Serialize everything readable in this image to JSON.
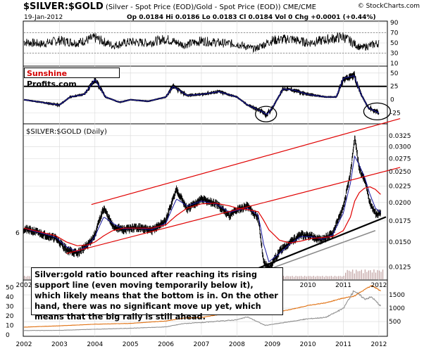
{
  "header": {
    "ticker": "$SILVER:$GOLD",
    "description": "(Silver - Spot Price (EOD)/Gold - Spot Price (EOD)) CME/CME",
    "watermark": "© StockCharts.com",
    "date": "19-Jan-2012",
    "stats": "Op 0.0184  Hi 0.0186  Lo 0.0183  Cl 0.0184  Vol 0  Chg +0.0001 (+0.44%)"
  },
  "logo": {
    "part1": "Sunshine",
    "part2": " Profits.com"
  },
  "main_panel_label": "$SILVER:$GOLD (Daily)",
  "annotation": {
    "text": "Silver:gold ratio bounced after reaching its rising support line (even moving temporarily below it), which likely means that the bottom is in. On the other hand, there was no significant move up yet, which means that the big rally is still ahead."
  },
  "colors": {
    "price": "#000000",
    "ma_fast": "#1a1aa0",
    "ma_slow": "#e00000",
    "trend_red": "#e00000",
    "support": "#000000",
    "support2": "#8a8a8a",
    "gold_line": "#e07010",
    "silver_line": "#909090",
    "volume": "#c0a0a0"
  },
  "chart_data": [
    {
      "type": "line",
      "panel": "RSI oscillator",
      "y_ticks": [
        "90",
        "70",
        "50",
        "30",
        "10"
      ],
      "ylim": [
        10,
        90
      ],
      "x": [
        2002.0,
        2002.5,
        2003.0,
        2003.5,
        2004.0,
        2004.5,
        2005.0,
        2005.5,
        2006.0,
        2006.5,
        2007.0,
        2007.5,
        2008.0,
        2008.5,
        2009.0,
        2009.5,
        2010.0,
        2010.5,
        2011.0,
        2011.5,
        2012.0
      ],
      "series": [
        {
          "values": [
            52,
            48,
            55,
            50,
            60,
            45,
            52,
            50,
            58,
            46,
            54,
            50,
            48,
            38,
            55,
            58,
            50,
            56,
            62,
            40,
            50
          ]
        }
      ]
    },
    {
      "type": "line",
      "panel": "momentum oscillator",
      "y_ticks": [
        "50",
        "25",
        "0",
        "-25"
      ],
      "ylim": [
        -40,
        55
      ],
      "horizontal_line": 25,
      "x": [
        2002.0,
        2002.5,
        2003.0,
        2003.3,
        2003.7,
        2004.0,
        2004.3,
        2004.7,
        2005.0,
        2005.5,
        2006.0,
        2006.2,
        2006.6,
        2007.0,
        2007.5,
        2008.0,
        2008.3,
        2008.7,
        2008.85,
        2009.0,
        2009.3,
        2009.6,
        2010.0,
        2010.5,
        2010.8,
        2011.0,
        2011.3,
        2011.5,
        2011.7,
        2012.0
      ],
      "series": [
        {
          "values": [
            0,
            -5,
            -10,
            5,
            10,
            38,
            5,
            -5,
            0,
            -3,
            5,
            25,
            8,
            10,
            15,
            5,
            -10,
            -22,
            -28,
            -15,
            20,
            18,
            10,
            5,
            5,
            40,
            45,
            10,
            -15,
            -25
          ]
        }
      ],
      "annotations": [
        "circle near 2008.8 low",
        "circle near 2011.9 low"
      ]
    },
    {
      "type": "line",
      "panel": "$SILVER:$GOLD (Daily)",
      "scale": "log",
      "y_ticks": [
        "0.0325",
        "0.0300",
        "0.0275",
        "0.0250",
        "0.0225",
        "0.0200",
        "0.0175",
        "0.0150",
        "0.0125"
      ],
      "ylim": [
        0.0115,
        0.034
      ],
      "x_ticks": [
        "2002",
        "2003",
        "2004",
        "2005",
        "2006",
        "2007",
        "2008",
        "2009",
        "2010",
        "2011",
        "2012"
      ],
      "x": [
        2002.0,
        2002.3,
        2002.6,
        2002.9,
        2003.2,
        2003.5,
        2003.8,
        2004.0,
        2004.25,
        2004.5,
        2004.8,
        2005.2,
        2005.6,
        2006.0,
        2006.3,
        2006.6,
        2007.0,
        2007.4,
        2007.8,
        2008.0,
        2008.3,
        2008.6,
        2008.75,
        2008.9,
        2009.2,
        2009.5,
        2009.8,
        2010.1,
        2010.4,
        2010.7,
        2011.0,
        2011.2,
        2011.32,
        2011.45,
        2011.6,
        2011.75,
        2011.9,
        2012.05
      ],
      "series": [
        {
          "values": [
            0.0165,
            0.0162,
            0.0158,
            0.0154,
            0.0142,
            0.0138,
            0.0147,
            0.0158,
            0.0192,
            0.0168,
            0.0164,
            0.0167,
            0.0163,
            0.0175,
            0.022,
            0.019,
            0.0205,
            0.0198,
            0.0182,
            0.019,
            0.0195,
            0.0178,
            0.013,
            0.0124,
            0.014,
            0.015,
            0.0158,
            0.0156,
            0.0152,
            0.016,
            0.0192,
            0.0245,
            0.032,
            0.0255,
            0.0235,
            0.02,
            0.0185,
            0.0184
          ]
        },
        {
          "values": [
            0.0166,
            0.0162,
            0.0159,
            0.0155,
            0.0145,
            0.014,
            0.0146,
            0.0156,
            0.018,
            0.0172,
            0.0165,
            0.0166,
            0.0164,
            0.0172,
            0.0205,
            0.0195,
            0.0202,
            0.0198,
            0.0186,
            0.0189,
            0.0192,
            0.0182,
            0.0148,
            0.013,
            0.0138,
            0.0148,
            0.0156,
            0.0156,
            0.0153,
            0.0158,
            0.0185,
            0.023,
            0.028,
            0.0262,
            0.024,
            0.0212,
            0.0192,
            0.0186
          ]
        },
        {
          "values": [
            0.0166,
            0.0163,
            0.016,
            0.0157,
            0.015,
            0.0146,
            0.0147,
            0.015,
            0.0157,
            0.0163,
            0.0166,
            0.0166,
            0.0166,
            0.017,
            0.0182,
            0.0192,
            0.0198,
            0.0199,
            0.0195,
            0.0192,
            0.019,
            0.0187,
            0.0176,
            0.0164,
            0.0152,
            0.0149,
            0.0151,
            0.0154,
            0.0155,
            0.0156,
            0.0163,
            0.018,
            0.0202,
            0.0215,
            0.0222,
            0.0224,
            0.022,
            0.0212
          ]
        }
      ],
      "trend_lines": [
        {
          "x": [
            2003.9,
            2012.6
          ],
          "y": [
            0.0197,
            0.0368
          ]
        },
        {
          "x": [
            2003.2,
            2012.6
          ],
          "y": [
            0.0138,
            0.0258
          ]
        },
        {
          "x": [
            2008.6,
            2012.2
          ],
          "y": [
            0.0124,
            0.018
          ]
        },
        {
          "x": [
            2008.8,
            2011.9
          ],
          "y": [
            0.0122,
            0.0163
          ]
        }
      ]
    },
    {
      "type": "line",
      "panel": "gold and silver prices",
      "left_ticks": [
        "50",
        "40",
        "30",
        "20",
        "10",
        "0"
      ],
      "right_ticks": [
        "1500",
        "1000",
        "500"
      ],
      "x_ticks": [
        "2002",
        "2003",
        "2004",
        "2005",
        "2006",
        "2007",
        "2008",
        "2009",
        "2010",
        "2011",
        "2012"
      ],
      "left_ylim": [
        0,
        55
      ],
      "right_ylim": [
        0,
        1950
      ],
      "x": [
        2002.0,
        2003.0,
        2004.0,
        2005.0,
        2006.0,
        2006.5,
        2007.0,
        2008.0,
        2008.3,
        2008.8,
        2009.5,
        2010.0,
        2010.5,
        2011.0,
        2011.3,
        2011.6,
        2011.8,
        2012.05
      ],
      "series": [
        {
          "values": [
            290,
            340,
            400,
            430,
            520,
            630,
            650,
            880,
            950,
            760,
            950,
            1100,
            1200,
            1380,
            1450,
            1700,
            1850,
            1650
          ]
        },
        {
          "values": [
            4.6,
            4.8,
            6.0,
            7.0,
            8.5,
            12.0,
            13.0,
            16.0,
            19.0,
            10.0,
            14.0,
            17.0,
            18.5,
            28.0,
            47.0,
            38.0,
            40.0,
            30.5
          ]
        }
      ]
    }
  ]
}
